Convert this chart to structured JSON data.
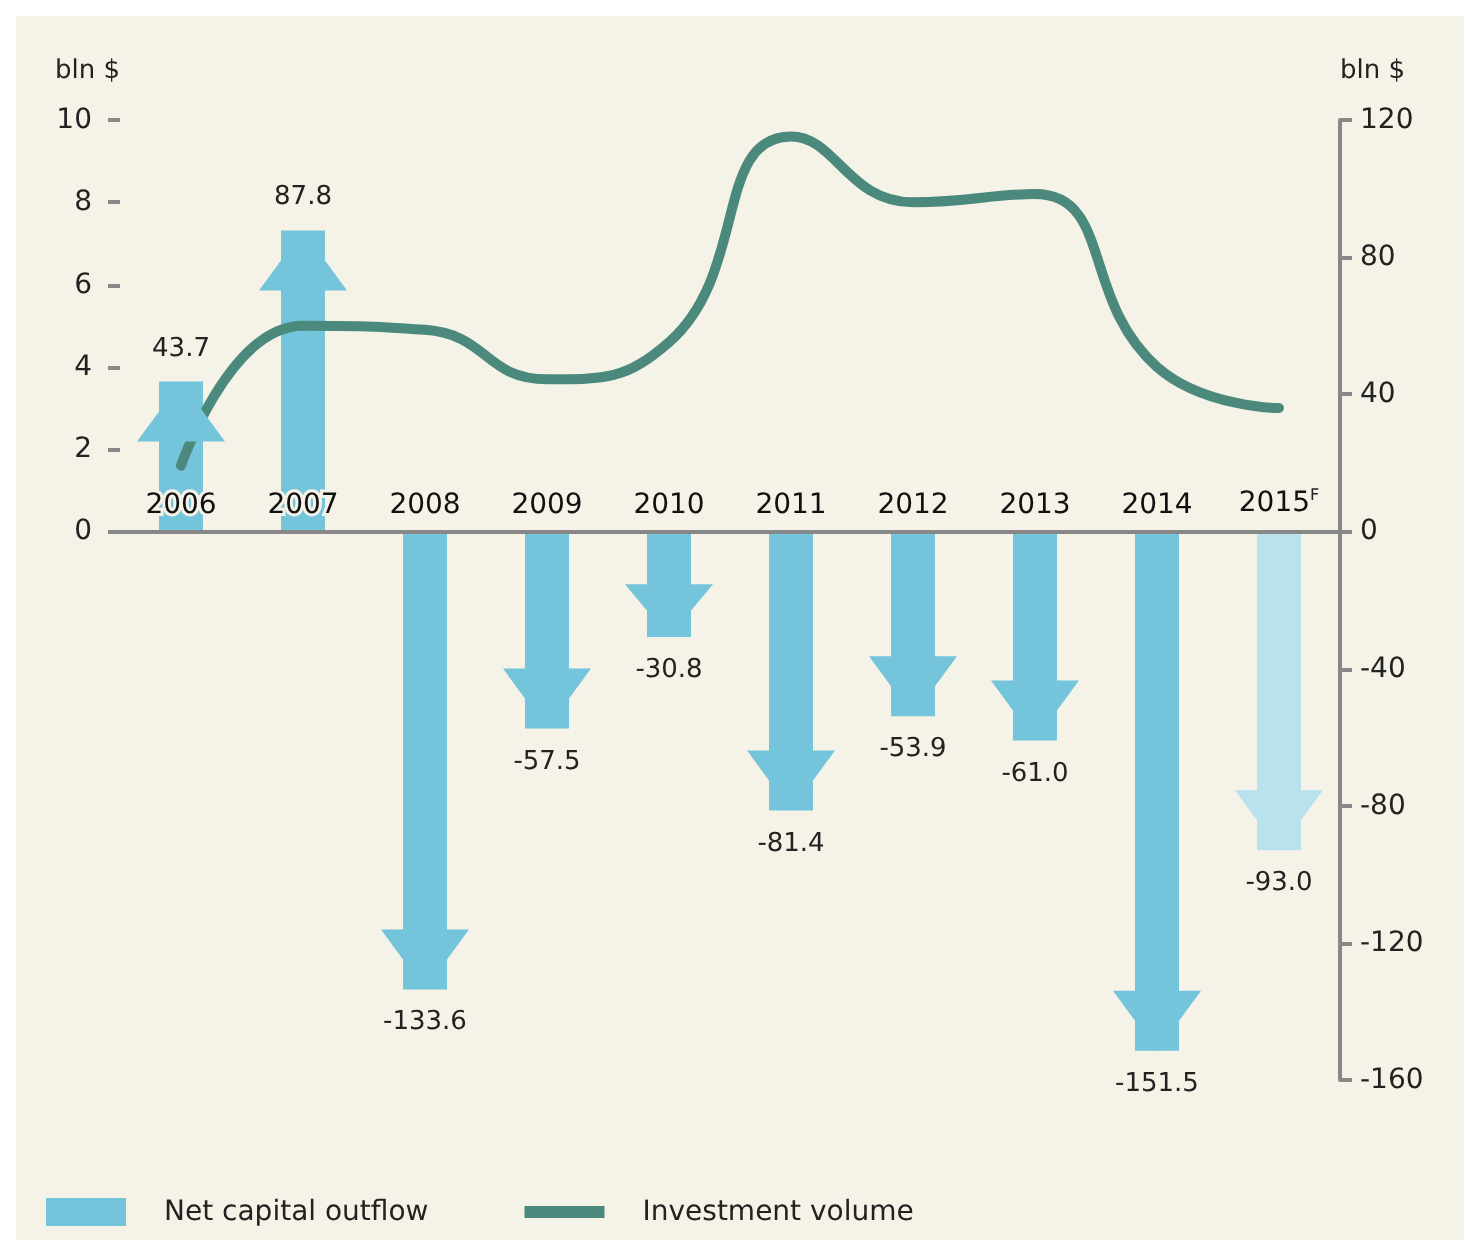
{
  "chart_data": {
    "type": "bar",
    "categories": [
      "2006",
      "2007",
      "2008",
      "2009",
      "2010",
      "2011",
      "2012",
      "2013",
      "2014",
      "2015$^{F}$"
    ],
    "ylabel": "bln $",
    "y2label": "bln $",
    "ylim": [
      -13.33,
      10
    ],
    "yticks": [
      0,
      2,
      4,
      6,
      8,
      10
    ],
    "y2lim": [
      -160,
      120
    ],
    "y2ticks": [
      -160,
      -120,
      -80,
      -40,
      0,
      40,
      80,
      120
    ],
    "series": [
      {
        "name": "Net capital outflow",
        "axis": "y2",
        "color": "#74c4dc",
        "colors": [
          "#74c4dc",
          "#74c4dc",
          "#74c4dc",
          "#74c4dc",
          "#74c4dc",
          "#74c4dc",
          "#74c4dc",
          "#74c4dc",
          "#74c4dc",
          "#b8e2ee"
        ],
        "values": [
          43.7,
          87.8,
          -133.6,
          -57.5,
          -30.8,
          -81.4,
          -53.9,
          -61.0,
          -151.5,
          -93.0
        ],
        "value_labels": [
          "43.7",
          "87.8",
          "-133.6",
          "-57.5",
          "-30.8",
          "-81.4",
          "-53.9",
          "-61.0",
          "-151.5",
          "-93.0"
        ]
      },
      {
        "name": "Investment volume",
        "type": "line",
        "color": "#4a897c",
        "values": [
          1.6,
          5.0,
          4.9,
          3.7,
          4.6,
          9.6,
          8.0,
          8.2,
          4.0,
          3.0
        ]
      }
    ],
    "marker": "none",
    "grid": false,
    "legend": "bottom"
  }
}
